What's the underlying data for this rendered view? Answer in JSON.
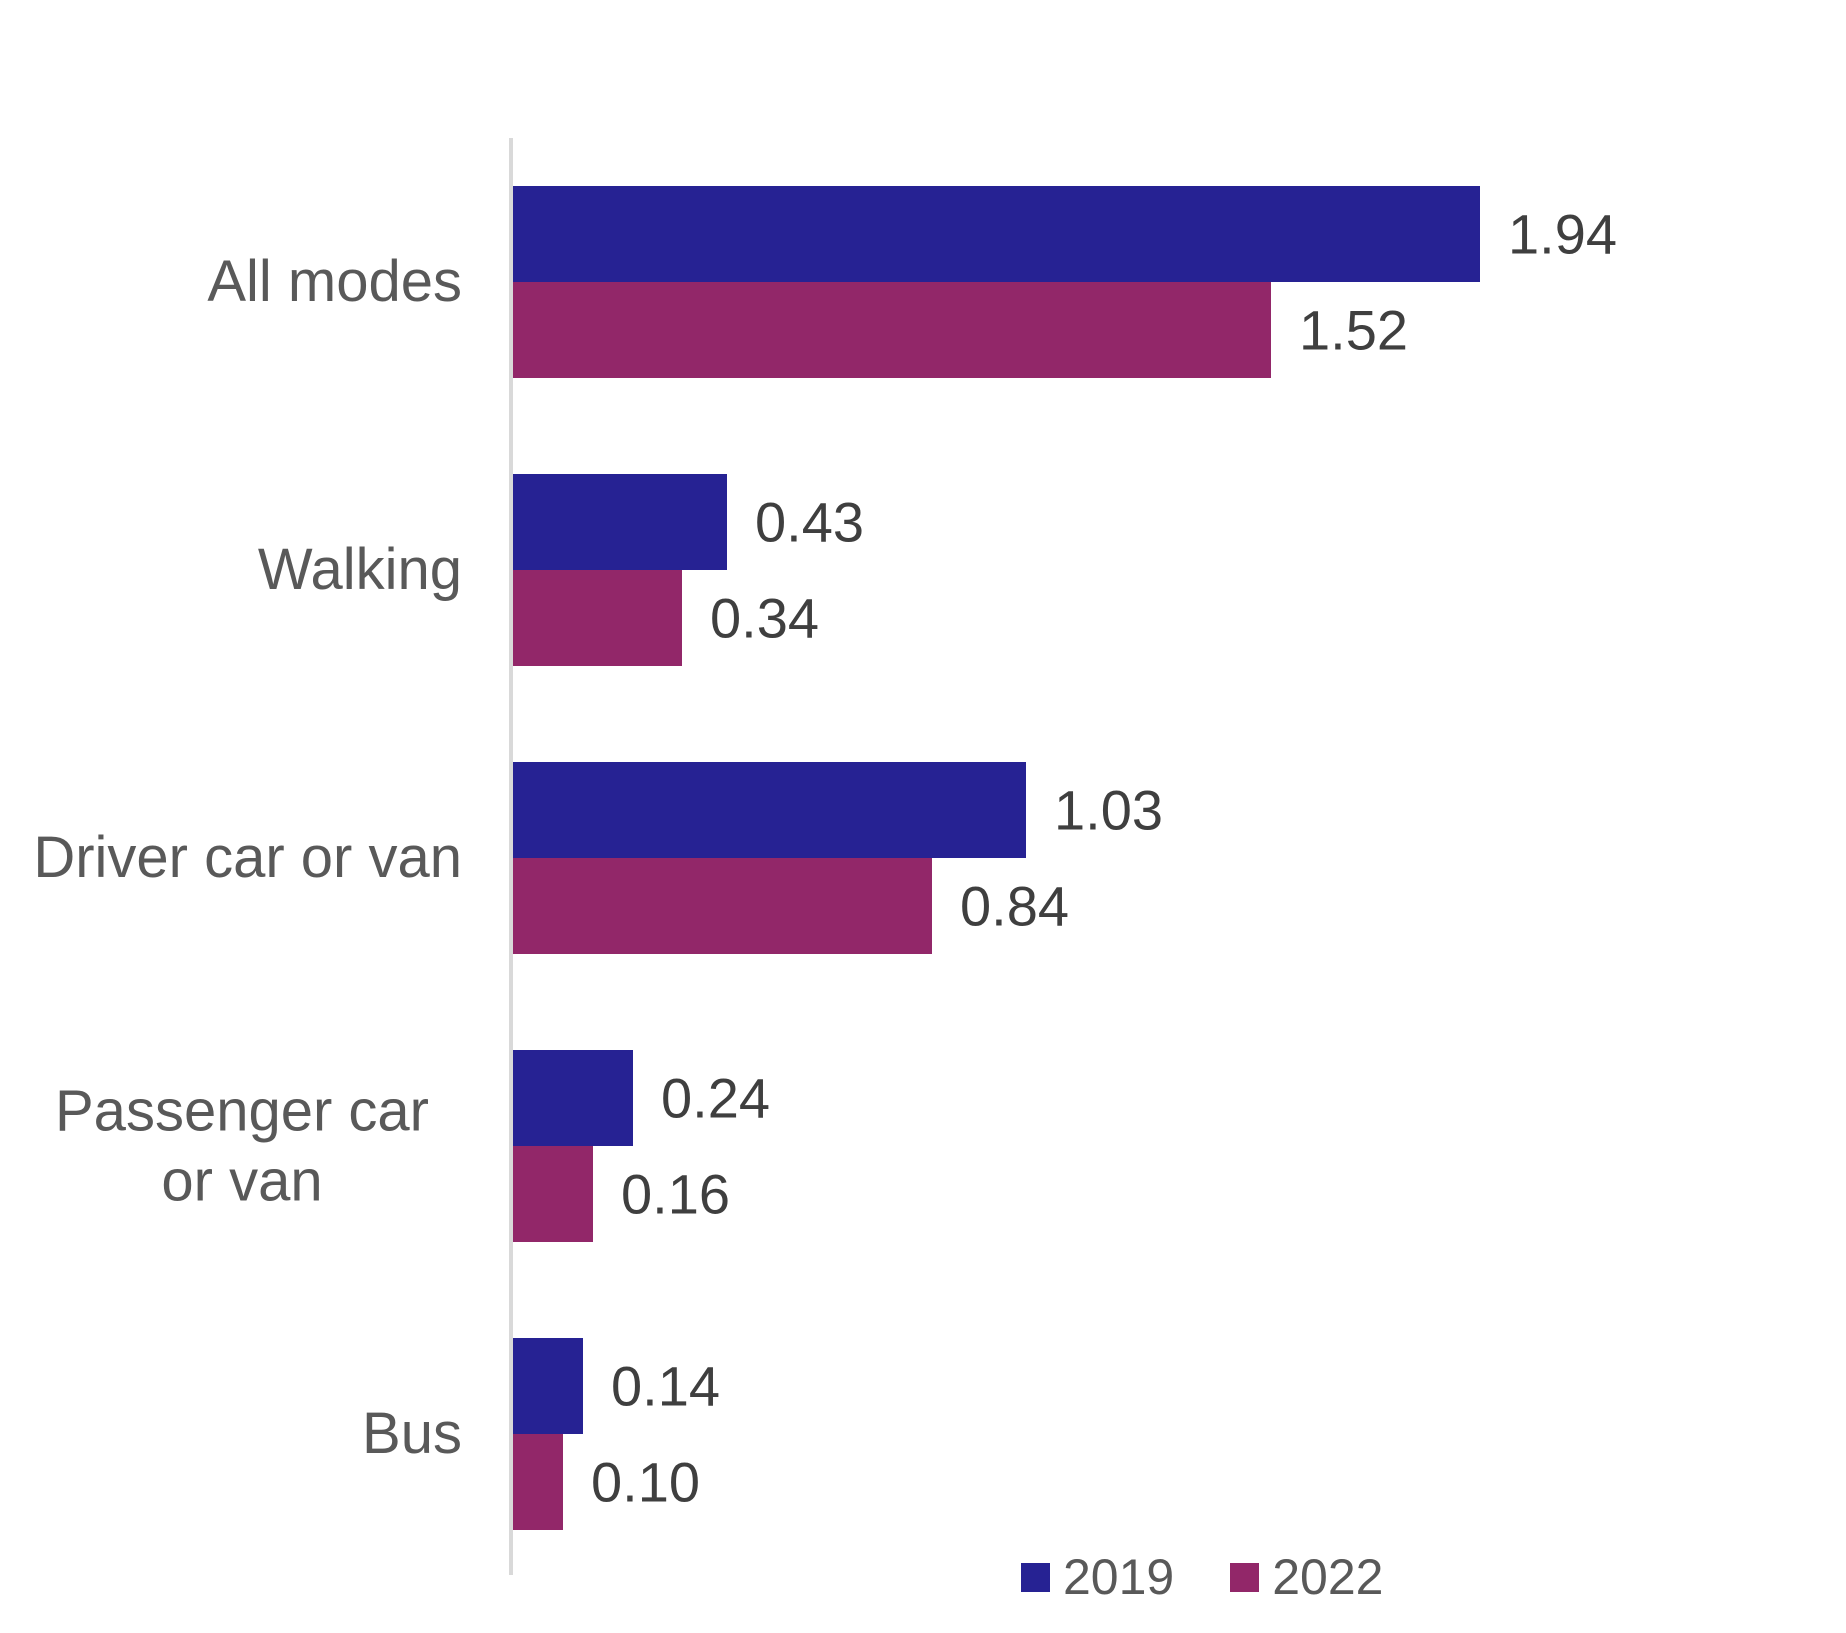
{
  "chart_data": {
    "type": "bar",
    "orientation": "horizontal",
    "title": "",
    "xlabel": "",
    "ylabel": "",
    "categories": [
      "All modes",
      "Walking",
      "Driver car or van",
      "Passenger car or van",
      "Bus"
    ],
    "series": [
      {
        "name": "2019",
        "color": "#262293",
        "values": [
          1.94,
          0.43,
          1.03,
          0.24,
          0.14
        ],
        "labels": [
          "1.94",
          "0.43",
          "1.03",
          "0.24",
          "0.14"
        ]
      },
      {
        "name": "2022",
        "color": "#922769",
        "values": [
          1.52,
          0.34,
          0.84,
          0.16,
          0.1
        ],
        "labels": [
          "1.52",
          "0.34",
          "0.84",
          "0.16",
          "0.10"
        ]
      }
    ],
    "xlim": [
      0,
      2.2
    ],
    "grid": false,
    "legend_position": "bottom",
    "axis_line_color": "#d9d9d9",
    "category_label_color": "#595959",
    "value_label_color": "#3f3f3f"
  }
}
